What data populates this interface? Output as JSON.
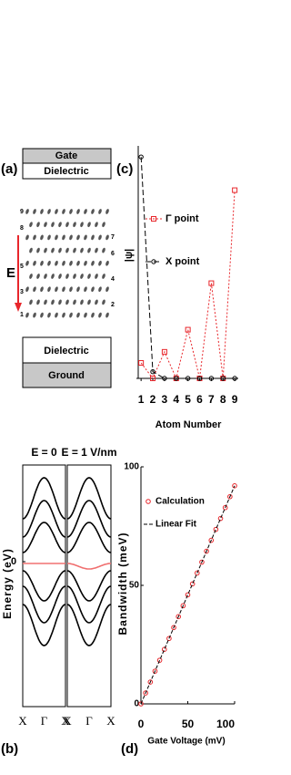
{
  "schematic": {
    "panel_label": "(a)",
    "layers": [
      "Gate",
      "Dielectric",
      "Dielectric",
      "Ground"
    ],
    "field_label": "E",
    "atom_labels_left": [
      "9",
      "8",
      "5",
      "3",
      "1"
    ],
    "atom_labels_right": [
      "7",
      "6",
      "4",
      "2"
    ]
  },
  "chart_data": [
    {
      "type": "line",
      "panel_label": "(c)",
      "y_label": "|ψ|",
      "x_label": "Atom Number",
      "x": [
        1,
        2,
        3,
        4,
        5,
        6,
        7,
        8,
        9
      ],
      "xlim": [
        0.6,
        9.3
      ],
      "xticks": [
        1,
        2,
        3,
        4,
        5,
        6,
        7,
        8,
        9
      ],
      "ylim": [
        0,
        1.05
      ],
      "series": [
        {
          "name": "Γ point",
          "color": "#e8262b",
          "marker": "square",
          "dash": "2,2",
          "values": [
            0.07,
            0,
            0.12,
            0,
            0.22,
            0,
            0.43,
            0,
            0.85
          ]
        },
        {
          "name": "X point",
          "color": "#000000",
          "marker": "circle",
          "dash": "6,3",
          "values": [
            1,
            0.03,
            0,
            0,
            0,
            0,
            0,
            0,
            0
          ]
        }
      ]
    },
    {
      "type": "bands",
      "panel_label": "(b)",
      "y_label": "Energy (eV)",
      "ylim": [
        -1.5,
        1
      ],
      "yticks": [
        0
      ],
      "color": "#000000",
      "highlight_color": "#f07070",
      "panels": [
        {
          "title": "E = 0",
          "xtick_labels": [
            "X",
            "Γ",
            "X"
          ]
        },
        {
          "title": "E = 1 V/nm",
          "xtick_labels": [
            "X",
            "Γ",
            "X"
          ]
        }
      ]
    },
    {
      "type": "scatter",
      "panel_label": "(d)",
      "y_label": "Bandwidth (meV)",
      "x_label": "Gate Voltage (mV)",
      "x": [
        0,
        5,
        10,
        15,
        20,
        25,
        30,
        35,
        40,
        45,
        50,
        55,
        60,
        65,
        70,
        75,
        80,
        85,
        90,
        95,
        100
      ],
      "xlim": [
        0,
        100
      ],
      "xticks": [
        0,
        50,
        100
      ],
      "ylim": [
        0,
        100
      ],
      "yticks": [
        0,
        50,
        100
      ],
      "series": [
        {
          "name": "Calculation",
          "color": "#e8262b",
          "marker": "circle",
          "values": [
            0,
            4.6,
            9.2,
            13.8,
            18.4,
            23,
            27.6,
            32.2,
            36.8,
            41.4,
            46,
            50.6,
            55.2,
            59.8,
            64.4,
            69,
            73.6,
            78.2,
            82.8,
            87.4,
            92
          ]
        },
        {
          "name": "Linear Fit",
          "color": "#000000",
          "dash": "4,2",
          "x": [
            0,
            100
          ],
          "values": [
            0,
            92
          ]
        }
      ]
    }
  ]
}
